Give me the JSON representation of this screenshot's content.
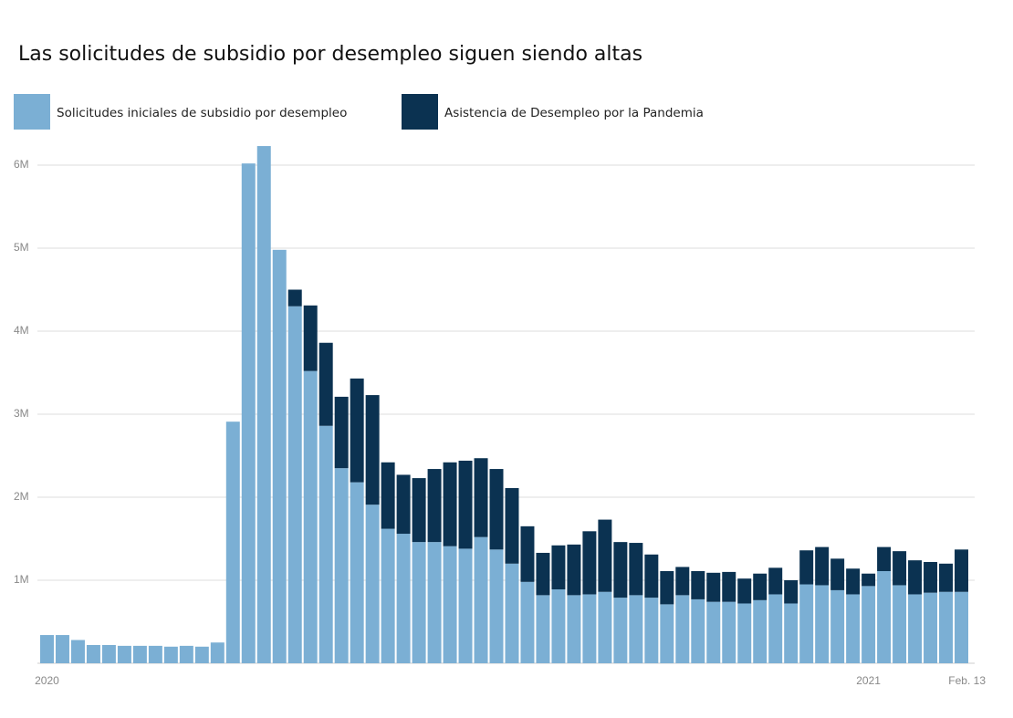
{
  "chart_data": {
    "type": "stacked_bar",
    "title": "Las solicitudes de subsidio por desempleo siguen siendo altas",
    "categories": [
      "2020",
      null,
      null,
      null,
      null,
      null,
      null,
      null,
      null,
      null,
      null,
      null,
      null,
      null,
      null,
      null,
      null,
      null,
      null,
      null,
      null,
      null,
      null,
      null,
      null,
      null,
      null,
      null,
      null,
      null,
      null,
      null,
      null,
      null,
      null,
      null,
      null,
      null,
      null,
      null,
      null,
      null,
      null,
      null,
      null,
      null,
      null,
      null,
      null,
      null,
      null,
      null,
      null,
      "2021",
      null,
      null,
      null,
      null,
      null,
      "Feb. 13"
    ],
    "series": [
      {
        "name": "Solicitudes iniciales de subsidio por desempleo",
        "color": "#7bafd4",
        "values": [
          0.34,
          0.34,
          0.28,
          0.22,
          0.22,
          0.21,
          0.21,
          0.21,
          0.2,
          0.21,
          0.2,
          0.25,
          2.91,
          6.02,
          6.23,
          4.98,
          4.3,
          3.52,
          2.86,
          2.35,
          2.18,
          1.91,
          1.62,
          1.56,
          1.46,
          1.46,
          1.41,
          1.38,
          1.52,
          1.37,
          1.2,
          0.98,
          0.82,
          0.89,
          0.82,
          0.83,
          0.86,
          0.79,
          0.82,
          0.79,
          0.71,
          0.82,
          0.77,
          0.74,
          0.74,
          0.72,
          0.76,
          0.83,
          0.72,
          0.95,
          0.94,
          0.88,
          0.83,
          0.93,
          1.11,
          0.94,
          0.83,
          0.85,
          0.86,
          0.86
        ]
      },
      {
        "name": "Asistencia de Desempleo por la Pandemia",
        "color": "#0b3251",
        "values": [
          null,
          null,
          null,
          null,
          null,
          null,
          null,
          null,
          null,
          null,
          null,
          null,
          null,
          null,
          null,
          null,
          0.2,
          0.79,
          1.0,
          0.86,
          1.25,
          1.32,
          0.8,
          0.71,
          0.77,
          0.88,
          1.01,
          1.06,
          0.95,
          0.97,
          0.91,
          0.67,
          0.51,
          0.53,
          0.61,
          0.76,
          0.87,
          0.67,
          0.63,
          0.52,
          0.4,
          0.34,
          0.34,
          0.35,
          0.36,
          0.3,
          0.32,
          0.32,
          0.28,
          0.41,
          0.46,
          0.38,
          0.31,
          0.15,
          0.29,
          0.41,
          0.41,
          0.37,
          0.34,
          0.51
        ]
      }
    ],
    "ylim": [
      0,
      6.3
    ],
    "yticks": [
      {
        "value": 1,
        "label": "1M"
      },
      {
        "value": 2,
        "label": "2M"
      },
      {
        "value": 3,
        "label": "3M"
      },
      {
        "value": 4,
        "label": "4M"
      },
      {
        "value": 5,
        "label": "5M"
      },
      {
        "value": 6,
        "label": "6M"
      }
    ],
    "grid": true
  }
}
